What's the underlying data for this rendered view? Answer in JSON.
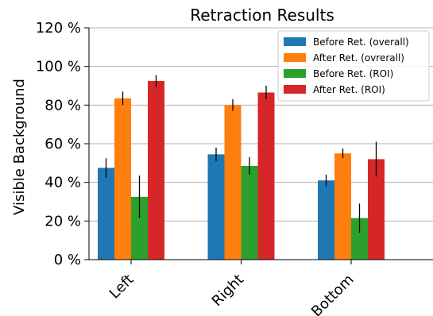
{
  "chart_data": {
    "type": "bar",
    "title": "Retraction Results",
    "xlabel": "",
    "ylabel": "Visible Background",
    "categories": [
      "Left",
      "Right",
      "Bottom"
    ],
    "ylim": [
      0,
      120
    ],
    "yticks": [
      0,
      20,
      40,
      60,
      80,
      100,
      120
    ],
    "ytick_labels": [
      "0 %",
      "20 %",
      "40 %",
      "60 %",
      "80 %",
      "100 %",
      "120 %"
    ],
    "grid": "horizontal",
    "legend_position": "top-right",
    "series": [
      {
        "name": "Before Ret. (overall)",
        "color": "#1f77b4",
        "values": [
          47.5,
          54.5,
          41
        ],
        "errors": [
          5,
          3.5,
          3
        ]
      },
      {
        "name": "After Ret. (ovrerall)",
        "color": "#ff7f0e",
        "values": [
          83.5,
          80,
          55
        ],
        "errors": [
          3.5,
          3,
          2.5
        ]
      },
      {
        "name": "Before Ret. (ROI)",
        "color": "#2ca02c",
        "values": [
          32.5,
          48.5,
          21.5
        ],
        "errors": [
          11,
          4.5,
          7.5
        ]
      },
      {
        "name": "After Ret. (ROI)",
        "color": "#d62728",
        "values": [
          92.5,
          86.5,
          52
        ],
        "errors": [
          3,
          3.5,
          9
        ]
      }
    ]
  }
}
